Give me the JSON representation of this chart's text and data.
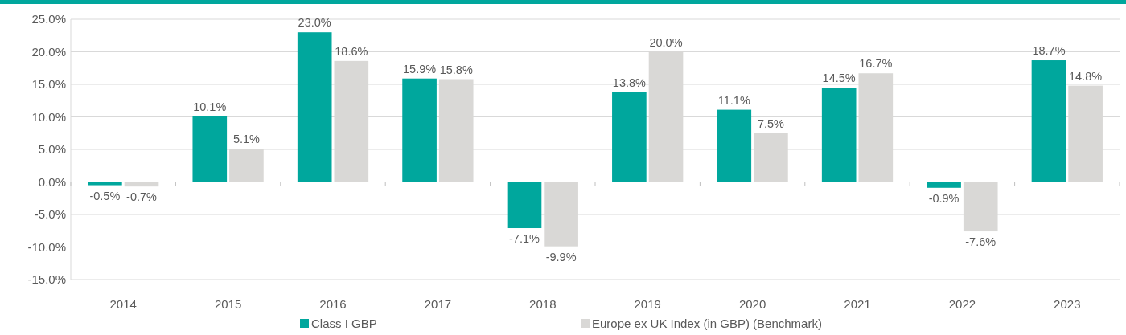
{
  "chart_data": {
    "type": "bar",
    "categories": [
      "2014",
      "2015",
      "2016",
      "2017",
      "2018",
      "2019",
      "2020",
      "2021",
      "2022",
      "2023"
    ],
    "series": [
      {
        "name": "Class I GBP",
        "color": "#00a79d",
        "values": [
          -0.5,
          10.1,
          23.0,
          15.9,
          -7.1,
          13.8,
          11.1,
          14.5,
          -0.9,
          18.7
        ]
      },
      {
        "name": "Europe ex UK Index (in GBP) (Benchmark)",
        "color": "#d9d8d6",
        "values": [
          -0.7,
          5.1,
          18.6,
          15.8,
          -9.9,
          20.0,
          7.5,
          16.7,
          -7.6,
          14.8
        ]
      }
    ],
    "value_labels": [
      [
        "-0.5%",
        "10.1%",
        "23.0%",
        "15.9%",
        "-7.1%",
        "13.8%",
        "11.1%",
        "14.5%",
        "-0.9%",
        "18.7%"
      ],
      [
        "-0.7%",
        "5.1%",
        "18.6%",
        "15.8%",
        "-9.9%",
        "20.0%",
        "7.5%",
        "16.7%",
        "-7.6%",
        "14.8%"
      ]
    ],
    "ylim": [
      -15,
      25
    ],
    "yticks": [
      {
        "value": -15,
        "label": "-15.0%"
      },
      {
        "value": -10,
        "label": "-10.0%"
      },
      {
        "value": -5,
        "label": "-5.0%"
      },
      {
        "value": 0,
        "label": "0.0%"
      },
      {
        "value": 5,
        "label": "5.0%"
      },
      {
        "value": 10,
        "label": "10.0%"
      },
      {
        "value": 15,
        "label": "15.0%"
      },
      {
        "value": 20,
        "label": "20.0%"
      },
      {
        "value": 25,
        "label": "25.0%"
      }
    ],
    "grid": "y",
    "legend": "bottom"
  }
}
